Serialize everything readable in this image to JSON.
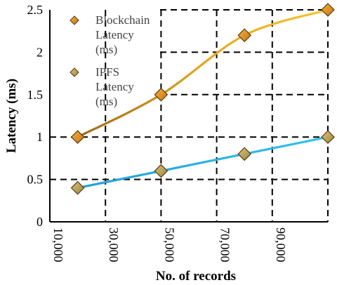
{
  "chart_data": {
    "type": "line",
    "xlabel": "No. of records",
    "ylabel": "Latency (ms)",
    "xlim": [
      10000,
      110000
    ],
    "ylim": [
      0,
      2.5
    ],
    "x_ticks": [
      "10,000",
      "30,000",
      "50,000",
      "70,000",
      "90,000"
    ],
    "x_tick_values": [
      10000,
      30000,
      50000,
      70000,
      90000
    ],
    "y_ticks": [
      "0",
      "0.5",
      "1",
      "1.5",
      "2",
      "2.5"
    ],
    "y_tick_values": [
      0,
      0.5,
      1,
      1.5,
      2,
      2.5
    ],
    "grid": true,
    "grid_style": "dashed",
    "legend_position": "top-left",
    "series": [
      {
        "name": "Blockchain Latency (ms)",
        "legend_lines": [
          "Blockchain",
          "Latency",
          "(ms)"
        ],
        "color": "#d6a020",
        "marker_color": "#d98c1a",
        "x": [
          20000,
          50000,
          80000,
          110000
        ],
        "values": [
          1.0,
          1.5,
          2.2,
          2.5
        ]
      },
      {
        "name": "IPFS Latency (ms)",
        "legend_lines": [
          "IPFS",
          "Latency",
          "(ms)"
        ],
        "color": "#29b6e6",
        "marker_color": "#b8a55a",
        "x": [
          20000,
          50000,
          80000,
          110000
        ],
        "values": [
          0.4,
          0.6,
          0.8,
          1.0
        ]
      }
    ]
  }
}
